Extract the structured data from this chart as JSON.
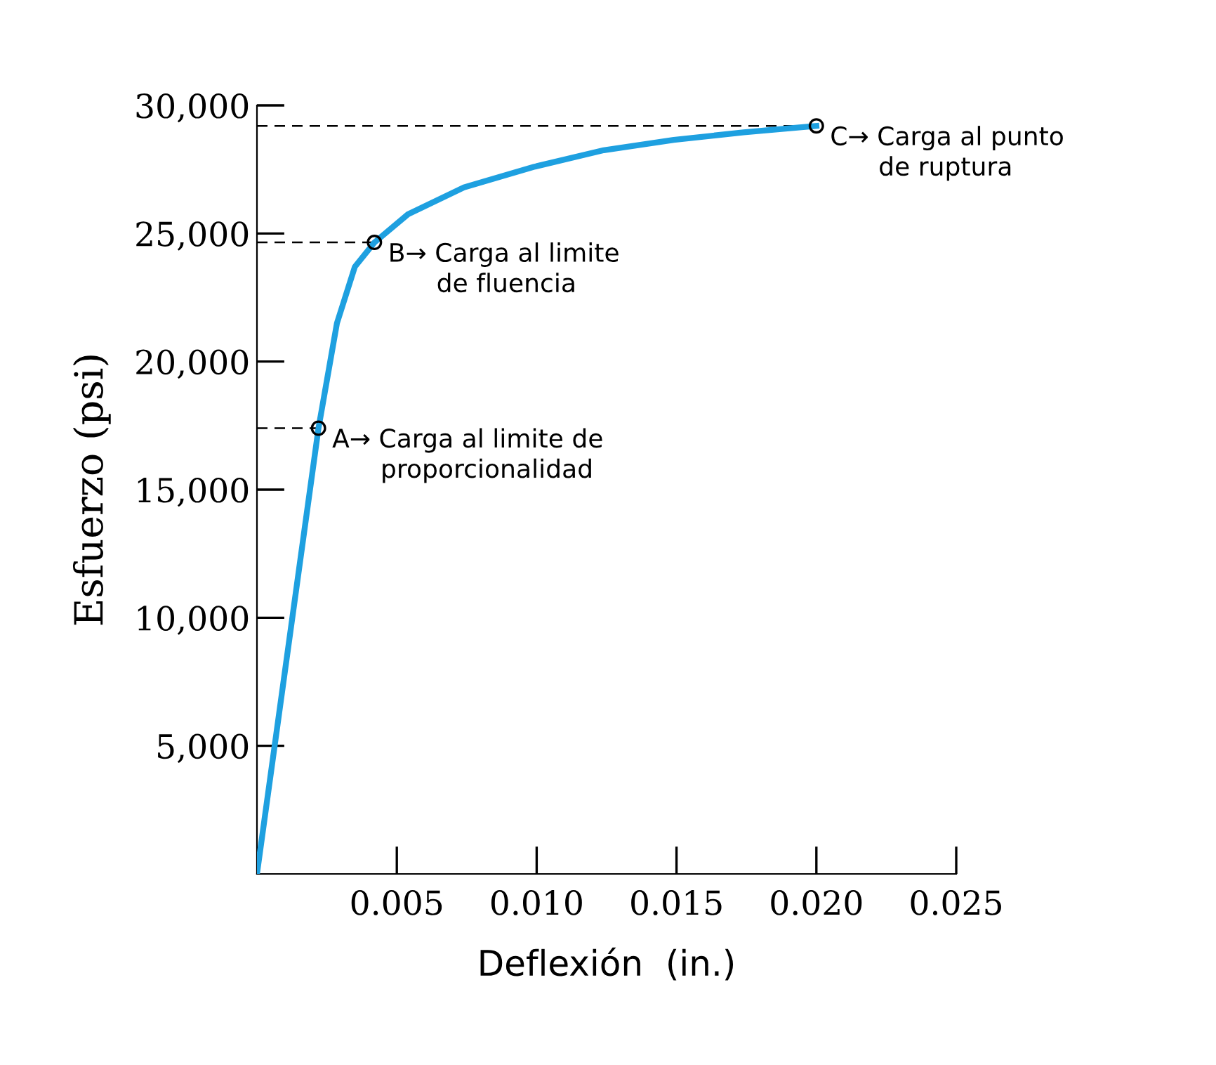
{
  "chart_data": {
    "type": "line",
    "xlabel": "Deflexión  (in.)",
    "ylabel": "Esfuerzo (psi)",
    "xlim": [
      0,
      0.025
    ],
    "ylim": [
      0,
      30000
    ],
    "xticks": [
      {
        "value": 0.005,
        "label": "0.005"
      },
      {
        "value": 0.01,
        "label": "0.010"
      },
      {
        "value": 0.015,
        "label": "0.015"
      },
      {
        "value": 0.02,
        "label": "0.020"
      },
      {
        "value": 0.025,
        "label": "0.025"
      }
    ],
    "yticks": [
      {
        "value": 5000,
        "label": "5,000"
      },
      {
        "value": 10000,
        "label": "10,000"
      },
      {
        "value": 15000,
        "label": "15,000"
      },
      {
        "value": 20000,
        "label": "20,000"
      },
      {
        "value": 25000,
        "label": "25,000"
      },
      {
        "value": 30000,
        "label": "30,000"
      }
    ],
    "grid": false,
    "legend": false,
    "series": [
      {
        "color": "#1ea0e0",
        "line_style": "solid",
        "marker": "none",
        "x": [
          0,
          0.0022,
          0.00286,
          0.0035,
          0.0042,
          0.0054,
          0.0074,
          0.0099,
          0.0124,
          0.0149,
          0.0174,
          0.02
        ],
        "values": [
          0,
          17400,
          21500,
          23700,
          24650,
          25750,
          26800,
          27600,
          28250,
          28650,
          28950,
          29200
        ]
      },
      {
        "color": "#000000",
        "line_style": "dashed",
        "marker": "none",
        "x": [
          0,
          0.0022
        ],
        "values": [
          17400,
          17400
        ]
      },
      {
        "color": "#000000",
        "line_style": "dashed",
        "marker": "none",
        "x": [
          0,
          0.0042
        ],
        "values": [
          24650,
          24650
        ]
      },
      {
        "color": "#000000",
        "line_style": "dashed",
        "marker": "none",
        "x": [
          0,
          0.02
        ],
        "values": [
          29200,
          29200
        ]
      },
      {
        "type": "scatter",
        "color": "#000000",
        "marker": "circle",
        "x": [
          0.0022,
          0.0042,
          0.02
        ],
        "values": [
          17400,
          24650,
          29200
        ]
      }
    ],
    "annotations": [
      {
        "text": "A→ Carga al limite de\n      proporcionalidad",
        "x": 0.0022,
        "y": 17400
      },
      {
        "text": "B→ Carga al limite\n      de fluencia",
        "x": 0.0042,
        "y": 24650
      },
      {
        "text": "C→ Carga al punto\n      de ruptura",
        "x": 0.02,
        "y": 29200
      }
    ]
  }
}
